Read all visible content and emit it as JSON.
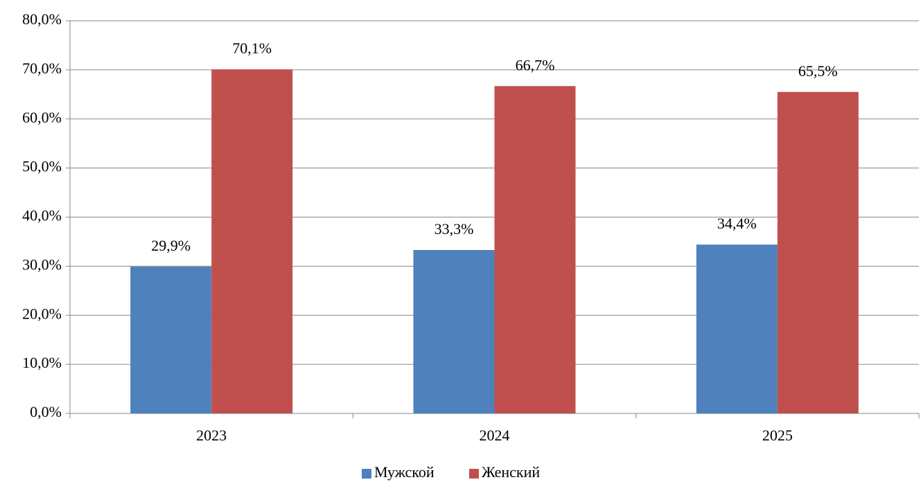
{
  "chart_data": {
    "type": "bar",
    "categories": [
      "2023",
      "2024",
      "2025"
    ],
    "series": [
      {
        "name": "Мужской",
        "color": "#4f81bd",
        "values": [
          29.9,
          33.3,
          34.4
        ],
        "value_labels": [
          "29,9%",
          "33,3%",
          "34,4%"
        ]
      },
      {
        "name": "Женский",
        "color": "#c0504d",
        "values": [
          70.1,
          66.7,
          65.5
        ],
        "value_labels": [
          "70,1%",
          "66,7%",
          "65,5%"
        ]
      }
    ],
    "ylim": [
      0,
      80
    ],
    "yticks": [
      {
        "value": 0,
        "label": "0,0%"
      },
      {
        "value": 10,
        "label": "10,0%"
      },
      {
        "value": 20,
        "label": "20,0%"
      },
      {
        "value": 30,
        "label": "30,0%"
      },
      {
        "value": 40,
        "label": "40,0%"
      },
      {
        "value": 50,
        "label": "50,0%"
      },
      {
        "value": 60,
        "label": "60,0%"
      },
      {
        "value": 70,
        "label": "70,0%"
      },
      {
        "value": 80,
        "label": "80,0%"
      }
    ],
    "grid": true,
    "legend": "bottom"
  }
}
